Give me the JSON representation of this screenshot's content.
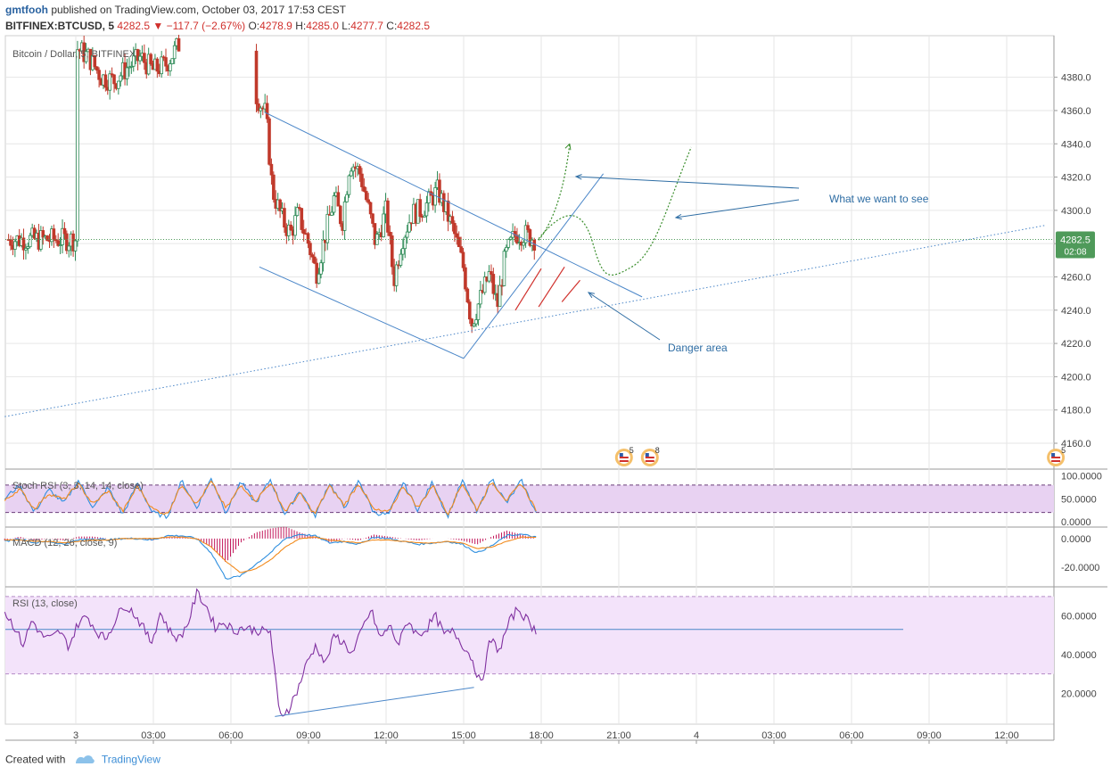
{
  "header": {
    "user": "gmtfooh",
    "published": "published on TradingView.com, October 03, 2017 17:53 CEST"
  },
  "symbol_bar": {
    "symbol": "BITFINEX:BTCUSD, 5",
    "last": "4282.5",
    "change": "▼ −117.7 (−2.67%)",
    "o_label": "O:",
    "o": "4278.9",
    "h_label": "H:",
    "h": "4285.0",
    "l_label": "L:",
    "l": "4277.7",
    "c_label": "C:",
    "c": "4282.5"
  },
  "footer": {
    "created_with": "Created with",
    "brand": "TradingView"
  },
  "colors": {
    "up": "#2e8b57",
    "down": "#c0392b",
    "grid": "#e6e6e6",
    "axis_text": "#444",
    "annot": "#2e6da4",
    "green_dots": "#3a8e2c",
    "danger": "#d0302c",
    "price_label_bg": "#4f9a5a",
    "stoch_fill": "#e8d2f2",
    "rsi_fill": "#f3e3fa",
    "blue_line": "#2f8fdf",
    "orange_line": "#f28a1c",
    "rsi_line": "#8030a0",
    "macd_hist": "#c2185b"
  },
  "chart_data": [
    {
      "type": "candlestick",
      "title": "",
      "legend": "Bitcoin / Dollar, 5, BITFINEX",
      "x_ticks": [
        "3",
        "03:00",
        "06:00",
        "09:00",
        "12:00",
        "15:00",
        "18:00",
        "21:00",
        "4",
        "03:00",
        "06:00",
        "09:00",
        "12:00"
      ],
      "y_ticks": [
        4380.0,
        4360.0,
        4340.0,
        4320.0,
        4300.0,
        4280.0,
        4260.0,
        4240.0,
        4220.0,
        4200.0,
        4180.0,
        4160.0
      ],
      "y_tick_labels": [
        "4380.0",
        "4360.0",
        "4340.0",
        "4320.0",
        "4300.0",
        "4280.0",
        "4260.0",
        "4240.0",
        "4220.0",
        "4200.0",
        "4180.0",
        "4160.0"
      ],
      "ylim": [
        4145,
        4405
      ],
      "last_price": 4282.5,
      "last_price_label": "4282.5",
      "countdown": "02:08",
      "candle_anchors_hours": [
        0,
        0.5,
        1.0,
        1.5,
        2.0,
        2.5,
        3.0,
        3.5,
        4.0,
        6.0,
        7.2,
        7.35,
        7.6,
        8.0,
        8.3,
        8.6,
        9.0,
        9.3,
        9.6,
        10.0,
        10.3,
        10.6,
        11.0,
        11.3,
        11.6,
        12.0,
        12.3,
        12.6,
        13.0,
        13.3,
        13.6,
        14.0,
        14.3,
        14.6,
        15.0,
        15.3,
        15.6,
        16.0,
        16.3,
        16.6,
        17.0,
        17.3,
        17.8
      ],
      "close_anchors": [
        4398,
        4392,
        4380,
        4378,
        4386,
        4392,
        4384,
        4388,
        4400,
        4402,
        4362,
        4358,
        4312,
        4294,
        4286,
        4298,
        4280,
        4262,
        4282,
        4308,
        4292,
        4330,
        4322,
        4302,
        4280,
        4300,
        4258,
        4282,
        4298,
        4300,
        4304,
        4312,
        4300,
        4288,
        4265,
        4232,
        4245,
        4262,
        4242,
        4272,
        4286,
        4286,
        4282.5
      ],
      "annotations": {
        "want": "What we want to see",
        "danger": "Danger area",
        "events": [
          "5",
          "8",
          "5"
        ]
      }
    },
    {
      "type": "line",
      "title": "",
      "legend": "Stoch RSI (3, 3, 14, 14, close)",
      "y_ticks": [
        100,
        50,
        0
      ],
      "y_tick_labels": [
        "100.0000",
        "50.0000",
        "0.0000"
      ],
      "ylim": [
        -10,
        115
      ],
      "band": [
        20,
        80
      ],
      "series": [
        {
          "name": "",
          "anchors": [
            50,
            80,
            20,
            70,
            40,
            90,
            30,
            75,
            15,
            85,
            20,
            10,
            90,
            30,
            95,
            20,
            88,
            40,
            92,
            15,
            70,
            10,
            85,
            30,
            90,
            20,
            15,
            85,
            25,
            88,
            10,
            90,
            20,
            95,
            40,
            90,
            20
          ]
        },
        {
          "name": "",
          "anchors": [
            45,
            72,
            28,
            62,
            48,
            82,
            38,
            68,
            22,
            78,
            28,
            16,
            82,
            38,
            88,
            28,
            80,
            46,
            85,
            22,
            62,
            16,
            78,
            36,
            84,
            26,
            20,
            78,
            30,
            80,
            16,
            84,
            26,
            88,
            46,
            84,
            26
          ]
        }
      ]
    },
    {
      "type": "line",
      "title": "",
      "legend": "MACD (12, 26, close, 9)",
      "y_ticks": [
        0,
        -20
      ],
      "y_tick_labels": [
        "0.0000",
        "-20.0000"
      ],
      "ylim": [
        -33,
        8
      ],
      "macd_anchors": [
        -2,
        0,
        -3,
        -2,
        -4,
        -1,
        0,
        -1,
        0,
        0,
        -1,
        2,
        2,
        0,
        -10,
        -28,
        -26,
        -18,
        -10,
        0,
        3,
        2,
        -3,
        -2,
        -4,
        1,
        0,
        -2,
        -4,
        -3,
        -2,
        -4,
        -10,
        -5,
        2,
        3,
        1
      ],
      "signal_anchors": [
        -1,
        -1,
        -2,
        -2,
        -3,
        -2,
        -1,
        -1,
        0,
        0,
        0,
        1,
        1,
        0,
        -6,
        -16,
        -24,
        -21,
        -15,
        -6,
        0,
        1,
        -1,
        -2,
        -3,
        -1,
        -1,
        -2,
        -3,
        -3,
        -2,
        -3,
        -7,
        -6,
        -2,
        1,
        1
      ]
    },
    {
      "type": "line",
      "title": "",
      "legend": "RSI (13, close)",
      "y_ticks": [
        60,
        40,
        20
      ],
      "y_tick_labels": [
        "60.0000",
        "40.0000",
        "20.0000"
      ],
      "ylim": [
        4,
        75
      ],
      "band": [
        30,
        70
      ],
      "midline": 53,
      "rsi_anchors": [
        62,
        55,
        45,
        58,
        50,
        48,
        52,
        44,
        56,
        60,
        52,
        48,
        57,
        66,
        62,
        55,
        46,
        62,
        52,
        48,
        56,
        72,
        65,
        54,
        57,
        52,
        54,
        53,
        52,
        52,
        8,
        12,
        22,
        36,
        45,
        35,
        50,
        46,
        40,
        53,
        63,
        48,
        55,
        45,
        58,
        50,
        53,
        60,
        50,
        52,
        45,
        38,
        24,
        48,
        42,
        56,
        64,
        58,
        52
      ]
    }
  ]
}
